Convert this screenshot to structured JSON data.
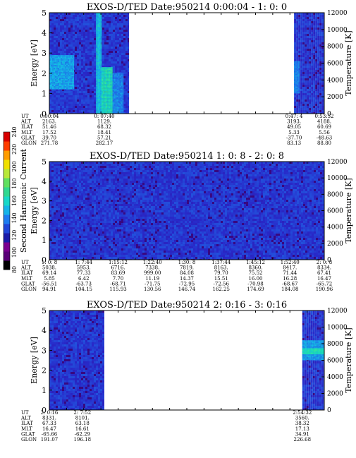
{
  "chart_data": [
    {
      "type": "heatmap",
      "title": "EXOS-D/TED   Date:950214  0:00:04 - 1: 0: 0",
      "ylabel": "Energy [eV]",
      "y2label": "Temperature [K]",
      "ylim": [
        0,
        5
      ],
      "y2lim": [
        0,
        12000
      ],
      "yticks": [
        "0",
        "1",
        "2",
        "3",
        "4",
        "5"
      ],
      "y2ticks": [
        "0",
        "2000",
        "4000",
        "6000",
        "8000",
        "10000",
        "12000"
      ],
      "coverage": [
        [
          0,
          0.29
        ],
        [
          0.89,
          1.0
        ]
      ],
      "bands": [
        {
          "x": [
            0.0,
            0.09
          ],
          "y": [
            1.2,
            2.9
          ],
          "level": 0.55
        },
        {
          "x": [
            0.17,
            0.19
          ],
          "y": [
            0.0,
            5.0
          ],
          "level": 0.62
        },
        {
          "x": [
            0.19,
            0.23
          ],
          "y": [
            0.0,
            2.3
          ],
          "level": 0.72
        },
        {
          "x": [
            0.23,
            0.27
          ],
          "y": [
            0.0,
            2.0
          ],
          "level": 0.5
        },
        {
          "x": [
            0.89,
            0.91
          ],
          "y": [
            1.0,
            2.6
          ],
          "level": 0.5
        }
      ],
      "row_labels": [
        "UT",
        "ALT",
        "ILAT",
        "MLT",
        "GLAT",
        "GLON"
      ],
      "columns": [
        {
          "x": 0.0,
          "values": [
            "0:00:04",
            "2163.",
            "51.46",
            "17.52",
            "39.70",
            "271.78"
          ]
        },
        {
          "x": 0.2,
          "values": [
            "0: 07:40",
            "1129.",
            "68.32",
            "18.41",
            "57.21",
            "282.17"
          ]
        },
        {
          "x": 0.89,
          "values": [
            "0:47: 4",
            "3193.",
            "49.05",
            "5.33",
            "-37.70",
            "83.13"
          ]
        },
        {
          "x": 1.0,
          "values": [
            "0:53:52",
            "4188.",
            "60.69",
            "5.56",
            "-48.63",
            "88.80"
          ]
        }
      ]
    },
    {
      "type": "heatmap",
      "title": "EXOS-D/TED   Date:950214  1: 0: 8 - 2: 0: 8",
      "ylabel": "Energy [eV]",
      "y2label": "Temperature [K]",
      "ylim": [
        0,
        5
      ],
      "y2lim": [
        0,
        12000
      ],
      "yticks": [
        "0",
        "1",
        "2",
        "3",
        "4",
        "5"
      ],
      "y2ticks": [
        "0",
        "2000",
        "4000",
        "6000",
        "8000",
        "10000",
        "12000"
      ],
      "coverage": [
        [
          0,
          1.0
        ]
      ],
      "bands": [],
      "row_labels": [
        "UT",
        "ALT",
        "ILAT",
        "MLT",
        "GLAT",
        "GLON"
      ],
      "columns": [
        {
          "x": 0.0,
          "values": [
            "1: 0: 8",
            "5038.",
            "69.14",
            "5.85",
            "-56.51",
            "94.91"
          ]
        },
        {
          "x": 0.125,
          "values": [
            "1: 7:44",
            "5953.",
            "77.33",
            "6.42",
            "-63.73",
            "104.15"
          ]
        },
        {
          "x": 0.25,
          "values": [
            "1:15:12",
            "6716.",
            "83.69",
            "7.70",
            "-68.71",
            "115.93"
          ]
        },
        {
          "x": 0.375,
          "values": [
            "1:22:40",
            "7338.",
            "999.00",
            "11.19",
            "-71.75",
            "130.56"
          ]
        },
        {
          "x": 0.5,
          "values": [
            "1:30: 8",
            "7819.",
            "84.08",
            "14.37",
            "-72.95",
            "146.74"
          ]
        },
        {
          "x": 0.625,
          "values": [
            "1:37:44",
            "8163.",
            "79.70",
            "15.51",
            "-72.56",
            "162.25"
          ]
        },
        {
          "x": 0.75,
          "values": [
            "1:45:12",
            "8360.",
            "75.52",
            "16.00",
            "-70.98",
            "174.69"
          ]
        },
        {
          "x": 0.875,
          "values": [
            "1:52:40",
            "8417.",
            "71.44",
            "16.28",
            "-68.67",
            "184.08"
          ]
        },
        {
          "x": 1.0,
          "values": [
            "2: 0: 8",
            "8334.",
            "67.41",
            "16.47",
            "-65.72",
            "190.96"
          ]
        }
      ]
    },
    {
      "type": "heatmap",
      "title": "EXOS-D/TED   Date:950214  2: 0:16 - 3: 0:16",
      "ylabel": "Energy [eV]",
      "y2label": "Temperature [K]",
      "ylim": [
        0,
        5
      ],
      "y2lim": [
        0,
        12000
      ],
      "yticks": [
        "0",
        "1",
        "2",
        "3",
        "4",
        "5"
      ],
      "y2ticks": [
        "0",
        "2000",
        "4000",
        "6000",
        "8000",
        "10000",
        "12000"
      ],
      "coverage": [
        [
          0,
          0.2
        ],
        [
          0.92,
          1.0
        ]
      ],
      "bands": [
        {
          "x": [
            0.92,
            1.0
          ],
          "y": [
            2.5,
            3.5
          ],
          "level": 0.55
        },
        {
          "x": [
            0.92,
            1.0
          ],
          "y": [
            2.8,
            3.1
          ],
          "level": 0.72
        }
      ],
      "row_labels": [
        "UT",
        "ALT",
        "ILAT",
        "MLT",
        "GLAT",
        "GLON"
      ],
      "columns": [
        {
          "x": 0.0,
          "values": [
            "2: 0:16",
            "8331.",
            "67.33",
            "16.47",
            "-65.66",
            "191.07"
          ]
        },
        {
          "x": 0.12,
          "values": [
            "2: 7:52",
            "8101.",
            "63.18",
            "16.61",
            "-62.29",
            "196.18"
          ]
        },
        {
          "x": 0.92,
          "values": [
            "2:54:32",
            "3560.",
            "38.32",
            "17.13",
            "34.91",
            "226.68"
          ]
        }
      ]
    }
  ],
  "colorbar": {
    "label": "Second Harmonic Current",
    "ticks": [
      "80",
      "100",
      "120",
      "140",
      "160",
      "180",
      "200",
      "220",
      "240"
    ],
    "colors": [
      "#000000",
      "#5a0078",
      "#7a0090",
      "#1a1aa8",
      "#2046d8",
      "#1e7cf0",
      "#16b4e8",
      "#18d8c8",
      "#30d890",
      "#60e060",
      "#b8e838",
      "#f0e000",
      "#ff9c00",
      "#ff3c00",
      "#d80000"
    ]
  }
}
